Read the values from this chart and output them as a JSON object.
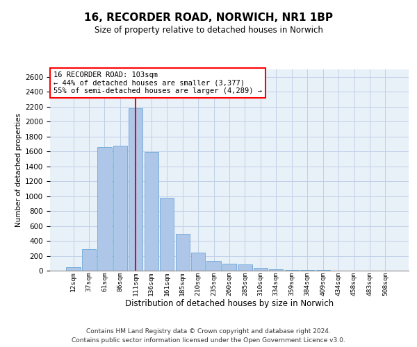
{
  "title1": "16, RECORDER ROAD, NORWICH, NR1 1BP",
  "title2": "Size of property relative to detached houses in Norwich",
  "xlabel": "Distribution of detached houses by size in Norwich",
  "ylabel": "Number of detached properties",
  "categories": [
    "12sqm",
    "37sqm",
    "61sqm",
    "86sqm",
    "111sqm",
    "136sqm",
    "161sqm",
    "185sqm",
    "210sqm",
    "235sqm",
    "260sqm",
    "285sqm",
    "310sqm",
    "334sqm",
    "359sqm",
    "384sqm",
    "409sqm",
    "434sqm",
    "458sqm",
    "483sqm",
    "508sqm"
  ],
  "values": [
    50,
    290,
    1660,
    1680,
    2175,
    1590,
    975,
    490,
    245,
    130,
    97,
    85,
    35,
    18,
    12,
    5,
    12,
    2,
    2,
    2,
    2
  ],
  "bar_color": "#aec6e8",
  "bar_edge_color": "#5a9fd4",
  "vline_x": 4.0,
  "vline_color": "red",
  "annotation_text": "16 RECORDER ROAD: 103sqm\n← 44% of detached houses are smaller (3,377)\n55% of semi-detached houses are larger (4,289) →",
  "annotation_box_color": "white",
  "annotation_box_edgecolor": "red",
  "ylim": [
    0,
    2700
  ],
  "yticks": [
    0,
    200,
    400,
    600,
    800,
    1000,
    1200,
    1400,
    1600,
    1800,
    2000,
    2200,
    2400,
    2600
  ],
  "grid_color": "#c0d0e8",
  "background_color": "#e8f0f8",
  "footer1": "Contains HM Land Registry data © Crown copyright and database right 2024.",
  "footer2": "Contains public sector information licensed under the Open Government Licence v3.0."
}
